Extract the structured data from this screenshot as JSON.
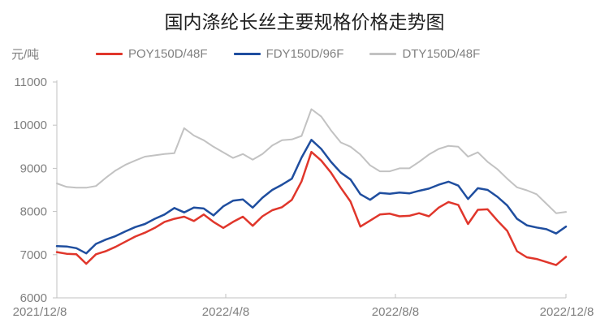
{
  "title": "国内涤纶长丝主要规格价格走势图",
  "unit_label": "元/吨",
  "chart_data": {
    "type": "line",
    "title": "国内涤纶长丝主要规格价格走势图",
    "ylabel": "元/吨",
    "ylim": [
      6000,
      11000
    ],
    "y_ticks": [
      11000,
      10000,
      9000,
      8000,
      7000,
      6000
    ],
    "grid": false,
    "legend_position": "top",
    "axis_color": "#c2c2c2",
    "tick_label_color": "#7f7f7f",
    "x_ticks": [
      {
        "label": "2021/12/8",
        "pos": 0
      },
      {
        "label": "2022/4/8",
        "pos": 17.25
      },
      {
        "label": "2022/8/8",
        "pos": 34.58
      },
      {
        "label": "2022/12/8",
        "pos": 52
      }
    ],
    "x_unit": "weekly samples from 2021/12/8 to 2022/12/8",
    "series": [
      {
        "name": "POY150D/48F",
        "color": "#e0362b",
        "values": [
          7060,
          7020,
          7010,
          6790,
          7010,
          7080,
          7180,
          7300,
          7420,
          7510,
          7620,
          7760,
          7830,
          7880,
          7780,
          7930,
          7760,
          7620,
          7760,
          7880,
          7670,
          7890,
          8030,
          8100,
          8270,
          8700,
          9380,
          9180,
          8900,
          8550,
          8230,
          7650,
          7790,
          7930,
          7950,
          7890,
          7900,
          7960,
          7890,
          8090,
          8220,
          8150,
          7710,
          8040,
          8050,
          7790,
          7550,
          7080,
          6940,
          6900,
          6830,
          6760,
          6950
        ]
      },
      {
        "name": "FDY150D/96F",
        "color": "#1f4e9f",
        "values": [
          7200,
          7190,
          7150,
          7030,
          7250,
          7350,
          7430,
          7540,
          7640,
          7710,
          7830,
          7930,
          8080,
          7980,
          8090,
          8070,
          7910,
          8120,
          8250,
          8280,
          8090,
          8320,
          8500,
          8620,
          8760,
          9250,
          9660,
          9450,
          9150,
          8900,
          8740,
          8400,
          8270,
          8430,
          8410,
          8440,
          8420,
          8480,
          8530,
          8620,
          8690,
          8600,
          8290,
          8540,
          8500,
          8340,
          8140,
          7830,
          7680,
          7630,
          7590,
          7490,
          7650
        ]
      },
      {
        "name": "DTY150D/48F",
        "color": "#c2c2c2",
        "values": [
          8650,
          8570,
          8550,
          8550,
          8590,
          8780,
          8950,
          9080,
          9180,
          9270,
          9300,
          9330,
          9350,
          9930,
          9760,
          9650,
          9500,
          9370,
          9240,
          9330,
          9200,
          9330,
          9530,
          9650,
          9670,
          9750,
          10370,
          10200,
          9880,
          9600,
          9500,
          9320,
          9070,
          8930,
          8930,
          9000,
          9000,
          9150,
          9320,
          9450,
          9520,
          9500,
          9270,
          9370,
          9150,
          8980,
          8760,
          8560,
          8490,
          8400,
          8180,
          7960,
          7990
        ]
      }
    ]
  }
}
